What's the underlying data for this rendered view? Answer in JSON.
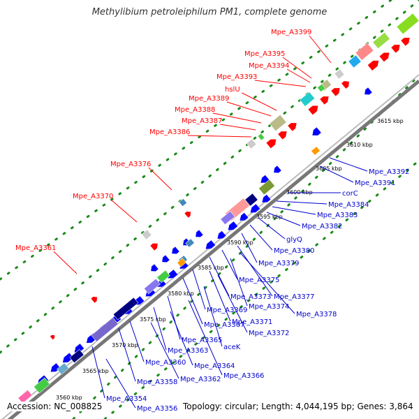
{
  "title": "Methylibium petroleiphilum PM1, complete genome",
  "footer": {
    "accession": "Accession: NC_008825",
    "summary": "Topology: circular; Length: 4,044,195 bp; Genes: 3,864"
  },
  "colors": {
    "forward_gene": "#ff0000",
    "reverse_gene": "#0000ff",
    "forward_label": "#ff0000",
    "reverse_label": "#0000cc",
    "backbone": "#999999",
    "dotted_ring": "#1a8a1a"
  },
  "scale_ticks": [
    "3560 kbp",
    "3565 kbp",
    "3570 kbp",
    "3575 kbp",
    "3580 kbp",
    "3585 kbp",
    "3590 kbp",
    "3595 kbp",
    "3600 kbp",
    "3605 kbp",
    "3610 kbp",
    "3615 kbp"
  ],
  "forward_labels": [
    "Mpe_A3399",
    "Mpe_A3395",
    "Mpe_A3394",
    "Mpe_A3393",
    "hslU",
    "Mpe_A3389",
    "Mpe_A3388",
    "Mpe_A3387",
    "Mpe_A3386",
    "Mpe_A3376",
    "Mpe_A3370",
    "Mpe_A3361"
  ],
  "reverse_labels": [
    "Mpe_A3392",
    "Mpe_A3391",
    "corC",
    "Mpe_A3384",
    "Mpe_A3383",
    "Mpe_A3382",
    "glyQ",
    "Mpe_A3380",
    "Mpe_A3379",
    "Mpe_A3375",
    "Mpe_A3377",
    "Mpe_A3373",
    "Mpe_A3374",
    "Mpe_A3378",
    "Mpe_A3369",
    "Mpe_A3371",
    "Mpe_A3367",
    "Mpe_A3372",
    "Mpe_A3365",
    "aceK",
    "Mpe_A3363",
    "Mpe_A3364",
    "Mpe_A3360",
    "Mpe_A3366",
    "Mpe_A3358",
    "Mpe_A3362",
    "Mpe_A3354",
    "Mpe_A3356"
  ]
}
